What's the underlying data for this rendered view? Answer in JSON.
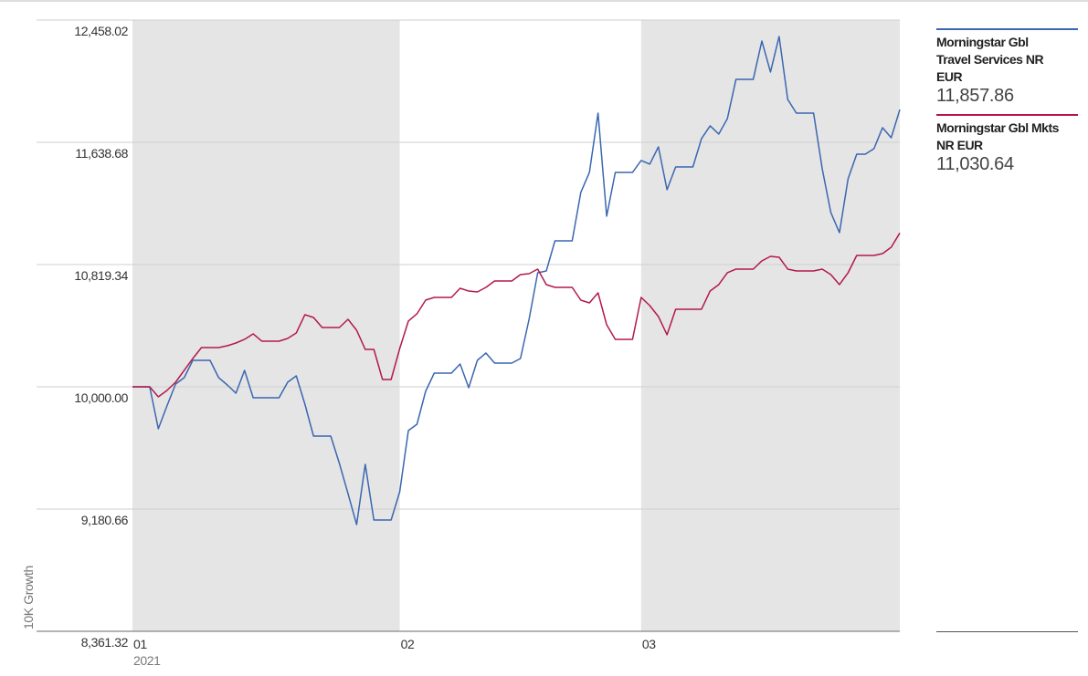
{
  "chart_data": {
    "type": "line",
    "y_label": "10K Growth",
    "x_year_label": "2021",
    "categories": [
      "01",
      null,
      null,
      null,
      null,
      null,
      null,
      null,
      null,
      null,
      null,
      null,
      null,
      null,
      null,
      null,
      null,
      null,
      null,
      null,
      null,
      null,
      null,
      null,
      null,
      null,
      null,
      null,
      null,
      null,
      null,
      "02",
      null,
      null,
      null,
      null,
      null,
      null,
      null,
      null,
      null,
      null,
      null,
      null,
      null,
      null,
      null,
      null,
      null,
      null,
      null,
      null,
      null,
      null,
      null,
      null,
      null,
      null,
      null,
      "03",
      null,
      null,
      null,
      null,
      null,
      null,
      null,
      null,
      null,
      null,
      null,
      null,
      null,
      null,
      null,
      null,
      null,
      null,
      null,
      null,
      null,
      null,
      null,
      null,
      null,
      null,
      null,
      null,
      null,
      null
    ],
    "series": [
      {
        "name": "Morningstar Gbl Travel Services NR EUR",
        "color": "#3a67b1",
        "legend_value": "11,857.86",
        "values": [
          10000,
          10000,
          10000,
          9718.7,
          9871.6,
          10018.3,
          10061.2,
          10177.3,
          10177.3,
          10177.3,
          10061.2,
          10012.2,
          9957.2,
          10110.1,
          9926.6,
          9926.6,
          9926.6,
          9926.6,
          10030.6,
          10073.4,
          9883.8,
          9669.8,
          9669.8,
          9669.8,
          9486.3,
          9284.5,
          9076.6,
          9480.2,
          9107.2,
          9107.2,
          9107.2,
          9296.8,
          9706.5,
          9749.3,
          9969.4,
          10091.7,
          10091.7,
          10091.7,
          10152.9,
          9993.9,
          10177.3,
          10226.3,
          10159.0,
          10159.0,
          10159.0,
          10189.6,
          10452.5,
          10764.4,
          10776.6,
          10978.4,
          10978.4,
          10978.4,
          11302.5,
          11437.0,
          11834.5,
          11143.5,
          11437.0,
          11437.0,
          11437.0,
          11516.5,
          11492.1,
          11608.2,
          11320.8,
          11473.7,
          11473.7,
          11473.7,
          11663.3,
          11748.9,
          11693.9,
          11797.8,
          12060.8,
          12060.8,
          12060.8,
          12317.6,
          12109.7,
          12348.2,
          11926.2,
          11834.5,
          11834.5,
          11834.5,
          11461.5,
          11168.0,
          11033.4,
          11394.2,
          11559.3,
          11559.3,
          11596.0,
          11736.7,
          11669.4,
          11857.86
        ]
      },
      {
        "name": "Morningstar Gbl Mkts NR EUR",
        "color": "#b3194b",
        "legend_value": "11,030.64",
        "values": [
          10000,
          10000,
          10000,
          9932.7,
          9975.5,
          10030.6,
          10110.1,
          10189.6,
          10263.0,
          10263.0,
          10263.0,
          10275.2,
          10293.5,
          10318.0,
          10354.7,
          10305.8,
          10305.8,
          10305.8,
          10324.1,
          10360.8,
          10483.1,
          10464.7,
          10397.5,
          10397.5,
          10397.5,
          10452.5,
          10379.1,
          10250.7,
          10250.7,
          10048.9,
          10048.9,
          10256.8,
          10440.3,
          10489.2,
          10580.9,
          10599.3,
          10599.3,
          10599.3,
          10660.4,
          10642.1,
          10636.0,
          10666.5,
          10709.3,
          10709.3,
          10709.3,
          10752.1,
          10758.3,
          10788.8,
          10684.9,
          10666.5,
          10666.5,
          10666.5,
          10580.9,
          10562.6,
          10629.8,
          10415.8,
          10318.0,
          10318.0,
          10318.0,
          10599.3,
          10544.2,
          10470.9,
          10348.6,
          10519.8,
          10519.8,
          10519.8,
          10519.8,
          10642.1,
          10684.9,
          10764.4,
          10788.8,
          10788.8,
          10788.8,
          10843.9,
          10874.4,
          10868.3,
          10788.8,
          10776.6,
          10776.6,
          10776.6,
          10788.8,
          10752.1,
          10684.9,
          10764.4,
          10880.6,
          10880.6,
          10880.6,
          10892.8,
          10935.6,
          11030.64
        ]
      }
    ],
    "ylim": [
      8361.32,
      12458.02
    ],
    "yticks": [
      {
        "value": 8361.32,
        "label": "8,361.32"
      },
      {
        "value": 9180.66,
        "label": "9,180.66"
      },
      {
        "value": 10000,
        "label": "10,000.00"
      },
      {
        "value": 10819.34,
        "label": "10,819.34"
      },
      {
        "value": 11638.68,
        "label": "11,638.68"
      },
      {
        "value": 12458.02,
        "label": "12,458.02"
      }
    ],
    "grid": true,
    "band_color": "#e5e5e5"
  }
}
